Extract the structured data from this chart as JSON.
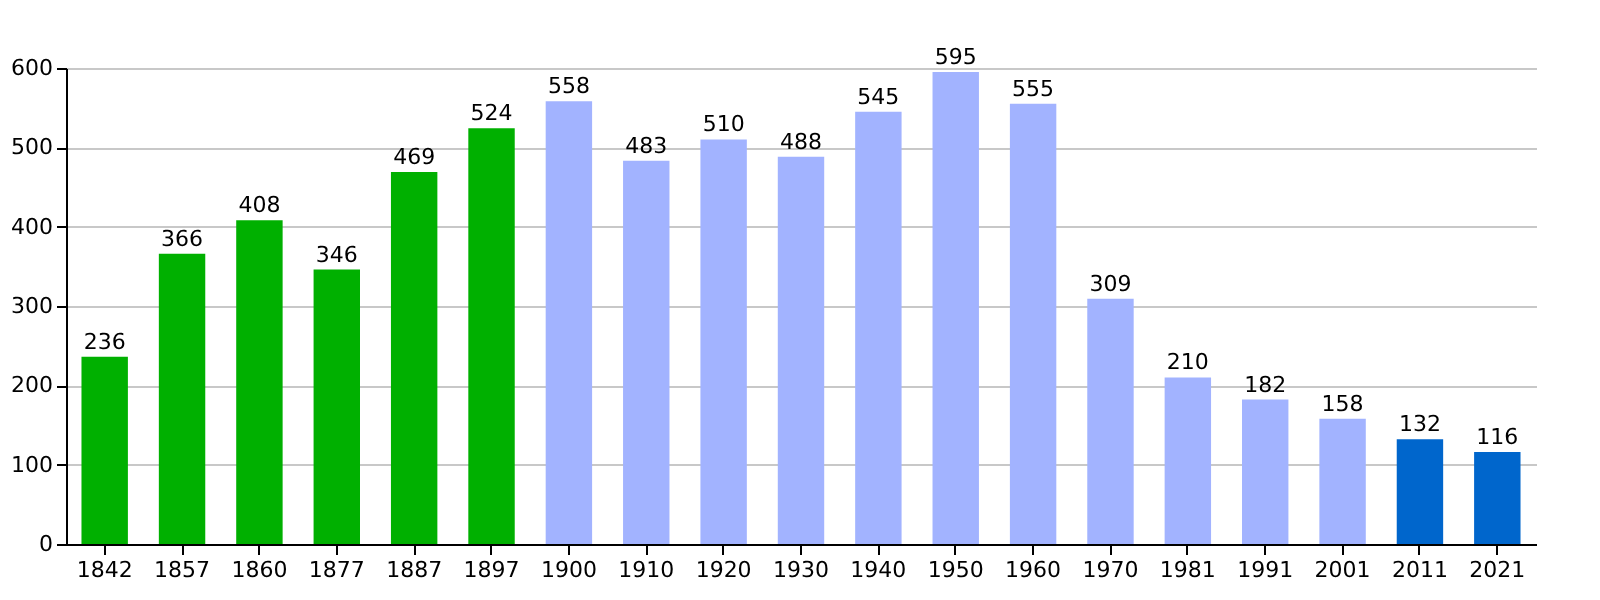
{
  "chart_data": {
    "type": "bar",
    "categories": [
      "1842",
      "1857",
      "1860",
      "1877",
      "1887",
      "1897",
      "1900",
      "1910",
      "1920",
      "1930",
      "1940",
      "1950",
      "1960",
      "1970",
      "1981",
      "1991",
      "2001",
      "2011",
      "2021"
    ],
    "values": [
      236,
      366,
      408,
      346,
      469,
      524,
      558,
      483,
      510,
      488,
      545,
      595,
      555,
      309,
      210,
      182,
      158,
      132,
      116
    ],
    "colors": [
      "#00b000",
      "#00b000",
      "#00b000",
      "#00b000",
      "#00b000",
      "#00b000",
      "#a2b3ff",
      "#a2b3ff",
      "#a2b3ff",
      "#a2b3ff",
      "#a2b3ff",
      "#a2b3ff",
      "#a2b3ff",
      "#a2b3ff",
      "#a2b3ff",
      "#a2b3ff",
      "#a2b3ff",
      "#0066cc",
      "#0066cc"
    ],
    "ylim": [
      0,
      600
    ],
    "yticks": [
      0,
      100,
      200,
      300,
      400,
      500,
      600
    ],
    "grid": "y",
    "data_labels": true
  }
}
